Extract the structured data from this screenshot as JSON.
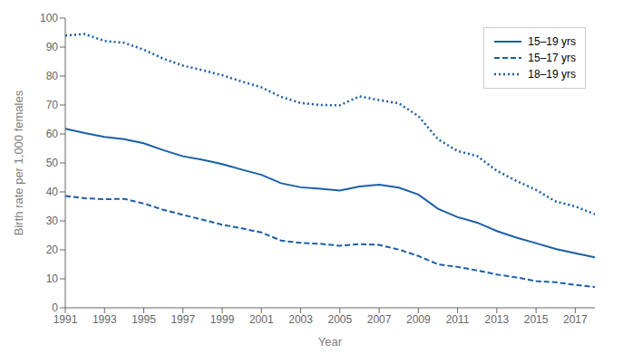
{
  "chart_data": {
    "type": "line",
    "xlabel": "Year",
    "ylabel": "Birth rate per 1,000 females",
    "x": [
      1991,
      1992,
      1993,
      1994,
      1995,
      1996,
      1997,
      1998,
      1999,
      2000,
      2001,
      2002,
      2003,
      2004,
      2005,
      2006,
      2007,
      2008,
      2009,
      2010,
      2011,
      2012,
      2013,
      2014,
      2015,
      2016,
      2017,
      2018
    ],
    "series": [
      {
        "name": "15–19 yrs",
        "color": "#1a5fa8",
        "line_style": "solid",
        "values": [
          61.8,
          60.3,
          59.0,
          58.2,
          56.8,
          54.4,
          52.3,
          51.1,
          49.6,
          47.7,
          45.9,
          43.0,
          41.6,
          41.1,
          40.5,
          41.9,
          42.5,
          41.5,
          39.1,
          34.2,
          31.3,
          29.4,
          26.5,
          24.2,
          22.3,
          20.3,
          18.8,
          17.4
        ]
      },
      {
        "name": "15–17 yrs",
        "color": "#1a5fa8",
        "line_style": "dashed",
        "values": [
          38.6,
          37.8,
          37.5,
          37.6,
          36.0,
          33.8,
          32.1,
          30.4,
          28.7,
          27.4,
          26.0,
          23.2,
          22.4,
          22.1,
          21.4,
          22.0,
          21.7,
          20.1,
          17.9,
          15.0,
          14.1,
          12.9,
          11.5,
          10.5,
          9.2,
          8.8,
          7.9,
          7.2
        ]
      },
      {
        "name": "18–19 yrs",
        "color": "#1a5fa8",
        "line_style": "dotted",
        "values": [
          94.0,
          94.5,
          92.1,
          91.5,
          89.1,
          86.0,
          83.6,
          82.0,
          80.3,
          78.1,
          76.1,
          72.8,
          70.7,
          70.0,
          69.9,
          73.0,
          71.7,
          70.6,
          66.2,
          58.2,
          54.1,
          52.4,
          47.3,
          43.8,
          40.7,
          36.7,
          35.0,
          32.3
        ]
      }
    ],
    "xlim": [
      1991,
      2018
    ],
    "ylim": [
      0,
      100
    ],
    "xticks": [
      1991,
      1993,
      1995,
      1997,
      1999,
      2001,
      2003,
      2005,
      2007,
      2009,
      2011,
      2013,
      2015,
      2017
    ],
    "yticks": [
      0,
      10,
      20,
      30,
      40,
      50,
      60,
      70,
      80,
      90,
      100
    ],
    "grid": false,
    "legend": "upper right"
  }
}
